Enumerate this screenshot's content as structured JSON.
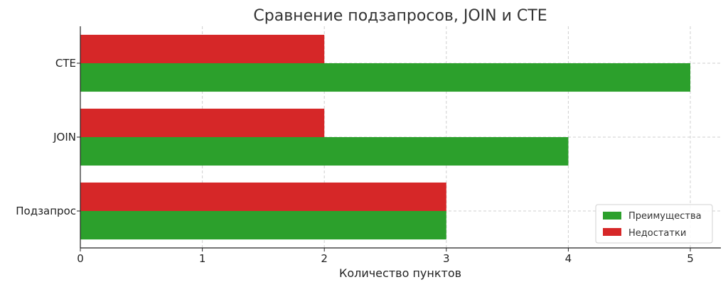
{
  "chart_data": {
    "type": "bar",
    "orientation": "horizontal",
    "title": "Сравнение подзапросов, JOIN и CTE",
    "xlabel": "Количество пунктов",
    "ylabel": "",
    "categories": [
      "Подзапрос",
      "JOIN",
      "CTE"
    ],
    "series": [
      {
        "name": "Преимущества",
        "values": [
          3,
          4,
          5
        ],
        "color": "#2ca02c"
      },
      {
        "name": "Недостатки",
        "values": [
          3,
          2,
          2
        ],
        "color": "#d62728"
      }
    ],
    "xlim": [
      0,
      5
    ],
    "xticks": [
      "0",
      "1",
      "2",
      "3",
      "4",
      "5"
    ],
    "grid": true,
    "legend_position": "bottom-right"
  }
}
